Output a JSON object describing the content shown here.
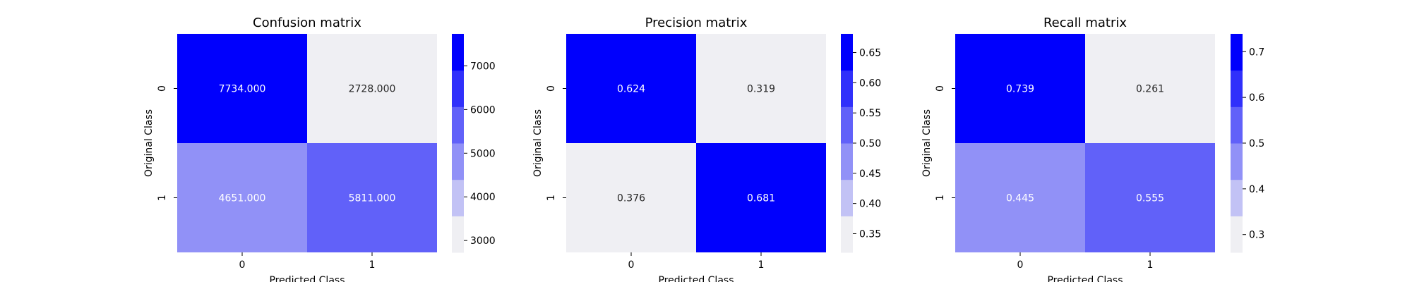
{
  "chart_data": [
    {
      "type": "heatmap",
      "title": "Confusion matrix",
      "xlabel": "Predicted Class",
      "ylabel": "Original Class",
      "x_ticks": [
        "0",
        "1"
      ],
      "y_ticks": [
        "0",
        "1"
      ],
      "values": [
        [
          7734,
          2728
        ],
        [
          4651,
          5811
        ]
      ],
      "cell_labels": [
        [
          "7734.000",
          "2728.000"
        ],
        [
          "4651.000",
          "5811.000"
        ]
      ],
      "colorbar": {
        "min": 2728,
        "max": 7734,
        "ticks": [
          3000,
          4000,
          5000,
          6000,
          7000
        ],
        "tick_labels": [
          "3000",
          "4000",
          "5000",
          "6000",
          "7000"
        ]
      }
    },
    {
      "type": "heatmap",
      "title": "Precision matrix",
      "xlabel": "Predicted Class",
      "ylabel": "Original Class",
      "x_ticks": [
        "0",
        "1"
      ],
      "y_ticks": [
        "0",
        "1"
      ],
      "values": [
        [
          0.624,
          0.319
        ],
        [
          0.376,
          0.681
        ]
      ],
      "cell_labels": [
        [
          "0.624",
          "0.319"
        ],
        [
          "0.376",
          "0.681"
        ]
      ],
      "colorbar": {
        "min": 0.319,
        "max": 0.681,
        "ticks": [
          0.35,
          0.4,
          0.45,
          0.5,
          0.55,
          0.6,
          0.65
        ],
        "tick_labels": [
          "0.35",
          "0.40",
          "0.45",
          "0.50",
          "0.55",
          "0.60",
          "0.65"
        ]
      }
    },
    {
      "type": "heatmap",
      "title": "Recall matrix",
      "xlabel": "Predicted Class",
      "ylabel": "Original Class",
      "x_ticks": [
        "0",
        "1"
      ],
      "y_ticks": [
        "0",
        "1"
      ],
      "values": [
        [
          0.739,
          0.261
        ],
        [
          0.445,
          0.555
        ]
      ],
      "cell_labels": [
        [
          "0.739",
          "0.261"
        ],
        [
          "0.445",
          "0.555"
        ]
      ],
      "colorbar": {
        "min": 0.261,
        "max": 0.739,
        "ticks": [
          0.3,
          0.4,
          0.5,
          0.6,
          0.7
        ],
        "tick_labels": [
          "0.3",
          "0.4",
          "0.5",
          "0.6",
          "0.7"
        ]
      }
    }
  ],
  "palette": {
    "colors": [
      "#efeff3",
      "#c2c2f5",
      "#9191f7",
      "#6161f9",
      "#3030fb",
      "#0000fd"
    ],
    "light_text": "#ffffff",
    "dark_text": "#262626"
  }
}
